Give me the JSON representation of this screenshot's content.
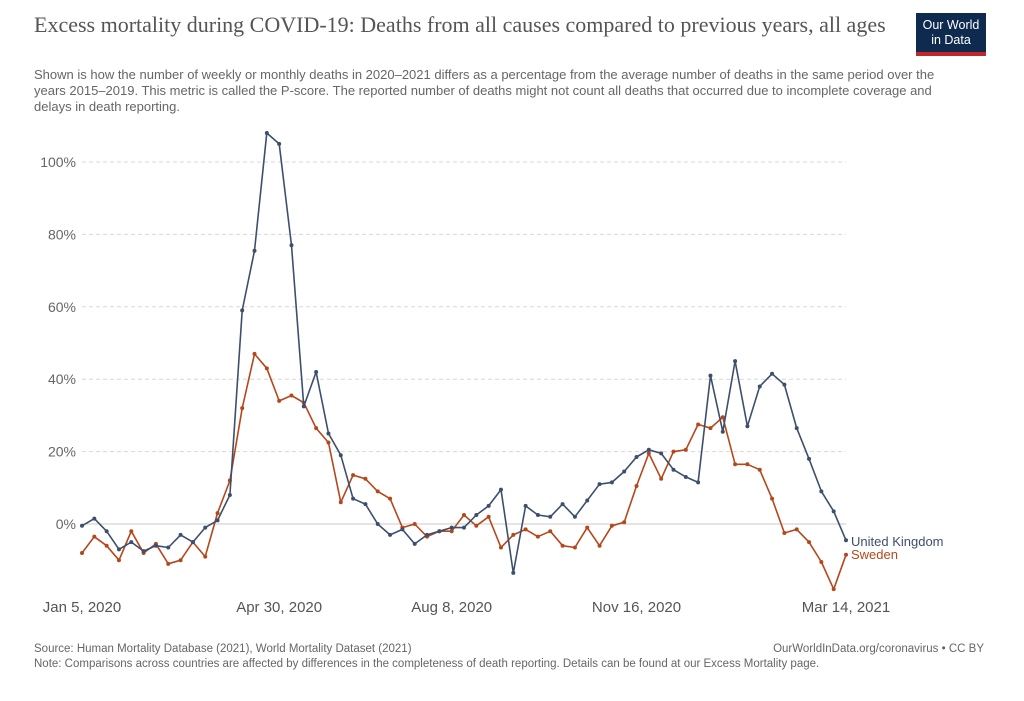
{
  "header": {
    "title": "Excess mortality during COVID-19: Deaths from all causes compared to previous years, all ages",
    "subtitle": "Shown is how the number of weekly or monthly deaths in 2020–2021 differs as a percentage from the average number of deaths in the same period over the years 2015–2019. This metric is called the P-score. The reported number of deaths might not count all deaths that occurred due to incomplete coverage and delays in death reporting.",
    "logo_line1": "Our World",
    "logo_line2": "in Data"
  },
  "colors": {
    "uk": "#3d4f6d",
    "sweden": "#b5471b",
    "grid": "#d8d8d8",
    "logo_bg": "#0e2a4f",
    "logo_accent": "#c0272d"
  },
  "chart_data": {
    "type": "line",
    "xlabel": "",
    "ylabel": "",
    "ylim": [
      -18,
      108
    ],
    "yticks": [
      0,
      20,
      40,
      60,
      80,
      100
    ],
    "ytick_labels": [
      "0%",
      "20%",
      "40%",
      "60%",
      "80%",
      "100%"
    ],
    "xticks": [
      0,
      16,
      30,
      45,
      62
    ],
    "xtick_labels": [
      "Jan 5, 2020",
      "Apr 30, 2020",
      "Aug 8, 2020",
      "Nov 16, 2020",
      "Mar 14, 2021"
    ],
    "x_unit": "week",
    "grid": true,
    "series": [
      {
        "name": "United Kingdom",
        "values": [
          -0.5,
          1.5,
          -2,
          -7,
          -5,
          -7.5,
          -6,
          -6.5,
          -3,
          -5,
          -1,
          1,
          8,
          59,
          75.5,
          108,
          105,
          77,
          32.5,
          42,
          25,
          19,
          7,
          5.5,
          0,
          -3,
          -1.5,
          -5.5,
          -3,
          -2,
          -1,
          -1,
          2.5,
          5,
          9.5,
          -13.5,
          5,
          2.5,
          2,
          5.5,
          2,
          6.5,
          11,
          11.5,
          14.5,
          18.5,
          20.5,
          19.5,
          15,
          13,
          11.5,
          41,
          25.5,
          45,
          27,
          38,
          41.5,
          38.5,
          26.5,
          18,
          9,
          3.5,
          -4.5
        ]
      },
      {
        "name": "Sweden",
        "values": [
          -8,
          -3.5,
          -6,
          -10,
          -2,
          -8,
          -5.5,
          -11,
          -10,
          -5,
          -9,
          3,
          12,
          32,
          47,
          43,
          34,
          35.5,
          33.5,
          26.5,
          22.5,
          6,
          13.5,
          12.5,
          9,
          7,
          -1,
          0,
          -3.5,
          -2,
          -2,
          2.5,
          -0.5,
          2,
          -6.5,
          -3,
          -1.5,
          -3.5,
          -2,
          -6,
          -6.5,
          -1,
          -6,
          -0.5,
          0.5,
          10.5,
          19.5,
          12.5,
          20,
          20.5,
          27.5,
          26.5,
          29.5,
          16.5,
          16.5,
          15,
          7,
          -2.5,
          -1.5,
          -5,
          -10.5,
          -18,
          -8.5
        ]
      }
    ]
  },
  "footer": {
    "source": "Source: Human Mortality Database (2021), World Mortality Dataset (2021)",
    "link": "OurWorldInData.org/coronavirus • CC BY",
    "note": "Note: Comparisons across countries are affected by differences in the completeness of death reporting. Details can be found at our Excess Mortality page."
  }
}
